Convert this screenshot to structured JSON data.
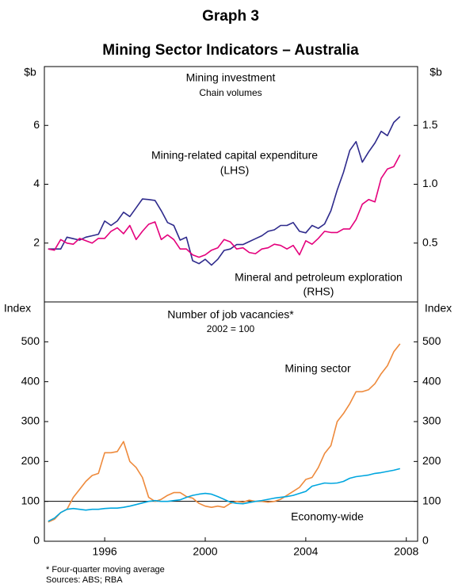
{
  "title": "Graph 3",
  "subtitle": "Mining Sector Indicators – Australia",
  "notes": [
    "*    Four-quarter moving average",
    "Sources: ABS; RBA"
  ],
  "chart_data": [
    {
      "type": "line",
      "title": "Mining investment",
      "subtitle": "Chain volumes",
      "ylabel": "$b",
      "y2label": "$b",
      "x": [
        1993.75,
        1994,
        1994.25,
        1994.5,
        1994.75,
        1995,
        1995.25,
        1995.5,
        1995.75,
        1996,
        1996.25,
        1996.5,
        1996.75,
        1997,
        1997.25,
        1997.5,
        1997.75,
        1998,
        1998.25,
        1998.5,
        1998.75,
        1999,
        1999.25,
        1999.5,
        1999.75,
        2000,
        2000.25,
        2000.5,
        2000.75,
        2001,
        2001.25,
        2001.5,
        2001.75,
        2002,
        2002.25,
        2002.5,
        2002.75,
        2003,
        2003.25,
        2003.5,
        2003.75,
        2004,
        2004.25,
        2004.5,
        2004.75,
        2005,
        2005.25,
        2005.5,
        2005.75,
        2006,
        2006.25,
        2006.5,
        2006.75,
        2007,
        2007.25,
        2007.5,
        2007.75
      ],
      "xlim": [
        1993.6,
        2008.45
      ],
      "ylim": [
        0,
        8
      ],
      "yticks": [
        2,
        4,
        6
      ],
      "y2lim": [
        0,
        2
      ],
      "y2ticks": [
        0.5,
        {
          "value": 1,
          "label": "1.0"
        },
        1.5
      ],
      "series": [
        {
          "name": "Mining-related capital expenditure",
          "axis_label": "(LHS)",
          "color": "#2e2a8c",
          "values": [
            1.8,
            1.8,
            1.8,
            2.2,
            2.15,
            2.1,
            2.2,
            2.25,
            2.3,
            2.75,
            2.6,
            2.75,
            3.05,
            2.9,
            3.2,
            3.5,
            3.48,
            3.45,
            3.1,
            2.7,
            2.6,
            2.1,
            2.2,
            1.4,
            1.3,
            1.45,
            1.25,
            1.45,
            1.75,
            1.8,
            1.95,
            1.95,
            2.05,
            2.15,
            2.25,
            2.4,
            2.45,
            2.6,
            2.6,
            2.7,
            2.4,
            2.35,
            2.6,
            2.5,
            2.65,
            3.1,
            3.8,
            4.4,
            5.15,
            5.45,
            4.75,
            5.1,
            5.4,
            5.8,
            5.65,
            6.1,
            6.3
          ]
        },
        {
          "name": "Mineral and petroleum exploration",
          "axis_label": "(RHS)",
          "color": "#e4007c",
          "axis": "y2",
          "values": [
            0.45,
            0.44,
            0.53,
            0.5,
            0.49,
            0.54,
            0.52,
            0.5,
            0.54,
            0.54,
            0.6,
            0.63,
            0.58,
            0.65,
            0.53,
            0.6,
            0.66,
            0.68,
            0.53,
            0.57,
            0.53,
            0.45,
            0.45,
            0.4,
            0.38,
            0.4,
            0.44,
            0.46,
            0.53,
            0.51,
            0.45,
            0.46,
            0.42,
            0.41,
            0.45,
            0.46,
            0.49,
            0.48,
            0.45,
            0.48,
            0.4,
            0.52,
            0.49,
            0.54,
            0.6,
            0.59,
            0.59,
            0.62,
            0.62,
            0.7,
            0.83,
            0.87,
            0.85,
            1.05,
            1.13,
            1.15,
            1.25
          ]
        }
      ]
    },
    {
      "type": "line",
      "title": "Number of job vacancies*",
      "subtitle": "2002 = 100",
      "ylabel": "Index",
      "y2label": "Index",
      "x": [
        1993.75,
        1994,
        1994.25,
        1994.5,
        1994.75,
        1995,
        1995.25,
        1995.5,
        1995.75,
        1996,
        1996.25,
        1996.5,
        1996.75,
        1997,
        1997.25,
        1997.5,
        1997.75,
        1998,
        1998.25,
        1998.5,
        1998.75,
        1999,
        1999.25,
        1999.5,
        1999.75,
        2000,
        2000.25,
        2000.5,
        2000.75,
        2001,
        2001.25,
        2001.5,
        2001.75,
        2002,
        2002.25,
        2002.5,
        2002.75,
        2003,
        2003.25,
        2003.5,
        2003.75,
        2004,
        2004.25,
        2004.5,
        2004.75,
        2005,
        2005.25,
        2005.5,
        2005.75,
        2006,
        2006.25,
        2006.5,
        2006.75,
        2007,
        2007.25,
        2007.5,
        2007.75
      ],
      "xlim": [
        1993.6,
        2008.45
      ],
      "xticks": [
        1996,
        2000,
        2004,
        2008
      ],
      "ylim": [
        0,
        600
      ],
      "yticks": [
        0,
        100,
        200,
        300,
        400,
        500
      ],
      "y2lim": [
        0,
        600
      ],
      "y2ticks": [
        0,
        100,
        200,
        300,
        400,
        500
      ],
      "hline": 100,
      "series": [
        {
          "name": "Mining sector",
          "color": "#ee8a3c",
          "values": [
            48,
            55,
            72,
            80,
            110,
            130,
            150,
            165,
            170,
            222,
            222,
            225,
            250,
            200,
            185,
            160,
            110,
            100,
            105,
            115,
            122,
            122,
            112,
            108,
            95,
            88,
            85,
            88,
            85,
            95,
            100,
            98,
            103,
            100,
            100,
            98,
            100,
            105,
            115,
            125,
            135,
            155,
            160,
            185,
            220,
            240,
            300,
            320,
            345,
            375,
            375,
            380,
            395,
            420,
            440,
            475,
            495
          ]
        },
        {
          "name": "Economy-wide",
          "color": "#00a6df",
          "values": [
            50,
            58,
            72,
            80,
            82,
            80,
            78,
            80,
            80,
            82,
            83,
            83,
            85,
            88,
            92,
            96,
            100,
            102,
            100,
            100,
            102,
            104,
            110,
            115,
            118,
            120,
            118,
            112,
            105,
            98,
            95,
            94,
            97,
            100,
            102,
            105,
            108,
            110,
            112,
            115,
            120,
            125,
            138,
            142,
            146,
            145,
            146,
            150,
            158,
            162,
            164,
            166,
            170,
            172,
            175,
            178,
            182
          ]
        }
      ]
    }
  ]
}
